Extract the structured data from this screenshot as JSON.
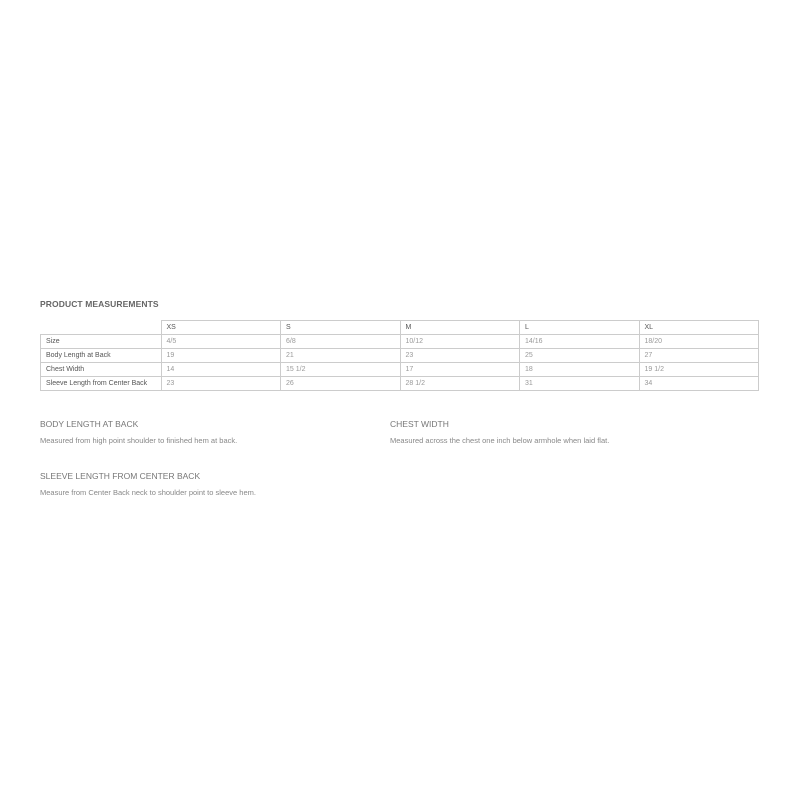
{
  "title": "PRODUCT MEASUREMENTS",
  "table": {
    "columns": [
      "XS",
      "S",
      "M",
      "L",
      "XL"
    ],
    "rows": [
      {
        "label": "Size",
        "values": [
          "4/5",
          "6/8",
          "10/12",
          "14/16",
          "18/20"
        ]
      },
      {
        "label": "Body Length at Back",
        "values": [
          "19",
          "21",
          "23",
          "25",
          "27"
        ]
      },
      {
        "label": "Chest Width",
        "values": [
          "14",
          "15 1/2",
          "17",
          "18",
          "19 1/2"
        ]
      },
      {
        "label": "Sleeve Length from Center Back",
        "values": [
          "23",
          "26",
          "28 1/2",
          "31",
          "34"
        ]
      }
    ]
  },
  "notes": [
    {
      "heading": "BODY LENGTH AT BACK",
      "text": "Measured from high point shoulder to finished hem at back."
    },
    {
      "heading": "CHEST WIDTH",
      "text": "Measured across the chest one inch below armhole when laid flat."
    },
    {
      "heading": "SLEEVE LENGTH FROM CENTER BACK",
      "text": "Measure from Center Back neck to shoulder point to sleeve hem."
    }
  ]
}
